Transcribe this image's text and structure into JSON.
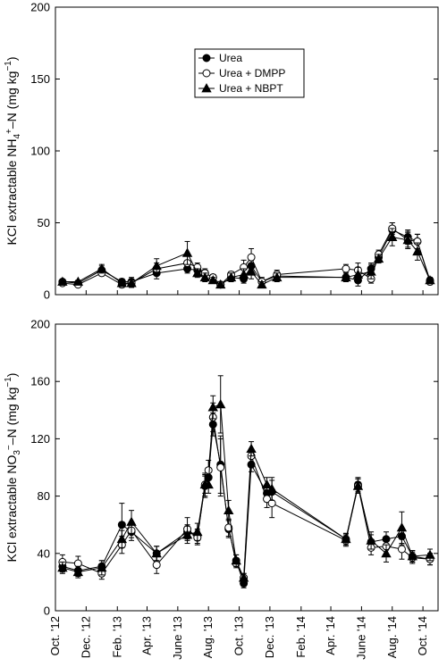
{
  "chart_data": [
    {
      "type": "line",
      "ylabel": "KCl extractable NH₄⁺–N (mg kg⁻¹)",
      "ylabel_parts": [
        "KCl extractable NH",
        "4",
        "+",
        "–N (mg kg",
        "−1",
        ")"
      ],
      "ylim": [
        0,
        200
      ],
      "yticks": [
        0,
        50,
        100,
        150,
        200
      ],
      "x": [
        "2012-10-15",
        "2012-11-15",
        "2013-01-01",
        "2013-02-10",
        "2013-03-01",
        "2013-04-20",
        "2013-06-20",
        "2013-07-10",
        "2013-07-25",
        "2013-08-10",
        "2013-08-25",
        "2013-09-15",
        "2013-10-10",
        "2013-10-25",
        "2013-11-15",
        "2013-12-15",
        "2014-05-01",
        "2014-05-25",
        "2014-06-20",
        "2014-07-05",
        "2014-08-01",
        "2014-09-01",
        "2014-09-20",
        "2014-10-15"
      ],
      "series": [
        {
          "name": "Urea",
          "marker": "circle-filled",
          "values": [
            9,
            8,
            17,
            9,
            9,
            15,
            18,
            17,
            15,
            12,
            7,
            12,
            11,
            20,
            9,
            13,
            12,
            10,
            18,
            26,
            45,
            40,
            37,
            10
          ]
        },
        {
          "name": "Urea + DMPP",
          "marker": "circle-open",
          "values": [
            8,
            7,
            15,
            7,
            8,
            18,
            22,
            19,
            15,
            12,
            7,
            14,
            19,
            26,
            9,
            14,
            18,
            17,
            11,
            28,
            46,
            38,
            37,
            9
          ]
        },
        {
          "name": "Urea + NBPT",
          "marker": "triangle-filled",
          "values": [
            9,
            9,
            18,
            8,
            8,
            20,
            29,
            15,
            12,
            10,
            7,
            12,
            14,
            16,
            7,
            12,
            12,
            14,
            16,
            25,
            40,
            38,
            30,
            10
          ]
        }
      ],
      "error": [
        [
          1,
          1,
          3,
          2,
          3,
          4,
          3,
          3,
          3,
          2,
          1,
          3,
          3,
          4,
          3,
          3,
          3,
          4,
          4,
          3,
          5,
          5,
          5,
          2
        ],
        [
          1,
          1,
          2,
          2,
          2,
          4,
          5,
          3,
          2,
          2,
          1,
          2,
          5,
          6,
          2,
          3,
          3,
          5,
          3,
          3,
          4,
          5,
          5,
          2
        ],
        [
          1,
          1,
          3,
          2,
          3,
          5,
          8,
          3,
          3,
          2,
          1,
          3,
          4,
          5,
          2,
          3,
          3,
          5,
          5,
          3,
          6,
          6,
          6,
          2
        ]
      ],
      "legend": "upper-center"
    },
    {
      "type": "line",
      "ylabel": "KCl extractable NO₃⁻–N (mg kg⁻¹)",
      "ylabel_parts": [
        "KCl extractable NO",
        "3",
        "−",
        "–N (mg kg",
        "−1",
        ")"
      ],
      "ylim": [
        0,
        200
      ],
      "yticks": [
        0,
        40,
        80,
        120,
        160,
        200
      ],
      "xticks": [
        "Oct. '12",
        "Dec. '12",
        "Feb. '13",
        "Apr. '13",
        "June '13",
        "Aug. '13",
        "Oct. '13",
        "Dec. '13",
        "Feb. '14",
        "Apr. '14",
        "June '14",
        "Aug. '14",
        "Oct. '14"
      ],
      "xtick_dates": [
        "2012-10-01",
        "2012-12-01",
        "2013-02-01",
        "2013-04-01",
        "2013-06-01",
        "2013-08-01",
        "2013-10-01",
        "2013-12-01",
        "2014-02-01",
        "2014-04-01",
        "2014-06-01",
        "2014-08-01",
        "2014-10-01"
      ],
      "xlim": [
        "2012-10-01",
        "2014-10-31"
      ],
      "x": [
        "2012-10-15",
        "2012-11-15",
        "2013-01-01",
        "2013-02-10",
        "2013-03-01",
        "2013-04-20",
        "2013-06-20",
        "2013-07-10",
        "2013-07-25",
        "2013-08-01",
        "2013-08-10",
        "2013-08-25",
        "2013-09-10",
        "2013-09-25",
        "2013-10-10",
        "2013-10-25",
        "2013-11-25",
        "2013-12-05",
        "2014-05-01",
        "2014-05-25",
        "2014-06-20",
        "2014-07-20",
        "2014-08-20",
        "2014-09-10",
        "2014-10-15"
      ],
      "series": [
        {
          "name": "Urea",
          "marker": "circle-filled",
          "values": [
            31,
            28,
            31,
            60,
            55,
            40,
            55,
            52,
            87,
            93,
            130,
            102,
            57,
            35,
            19,
            102,
            82,
            83,
            50,
            88,
            48,
            50,
            52,
            38,
            36
          ]
        },
        {
          "name": "Urea + DMPP",
          "marker": "circle-open",
          "values": [
            34,
            33,
            26,
            46,
            56,
            32,
            57,
            51,
            88,
            98,
            135,
            100,
            58,
            33,
            23,
            108,
            78,
            75,
            49,
            87,
            44,
            45,
            43,
            37,
            36
          ]
        },
        {
          "name": "Urea + NBPT",
          "marker": "triangle-filled",
          "values": [
            30,
            27,
            30,
            50,
            62,
            40,
            53,
            55,
            88,
            88,
            142,
            144,
            70,
            35,
            23,
            113,
            88,
            85,
            50,
            87,
            49,
            40,
            58,
            38,
            39
          ]
        }
      ],
      "error": [
        [
          4,
          4,
          4,
          15,
          6,
          5,
          5,
          5,
          8,
          6,
          8,
          20,
          6,
          4,
          3,
          5,
          6,
          8,
          4,
          5,
          5,
          5,
          6,
          4,
          4
        ],
        [
          5,
          5,
          4,
          6,
          5,
          6,
          8,
          5,
          6,
          7,
          10,
          20,
          6,
          3,
          3,
          5,
          6,
          10,
          4,
          5,
          5,
          6,
          7,
          4,
          4
        ],
        [
          4,
          4,
          5,
          6,
          8,
          5,
          6,
          6,
          8,
          6,
          8,
          20,
          7,
          4,
          3,
          5,
          5,
          8,
          4,
          5,
          6,
          6,
          11,
          4,
          4
        ]
      ]
    }
  ]
}
